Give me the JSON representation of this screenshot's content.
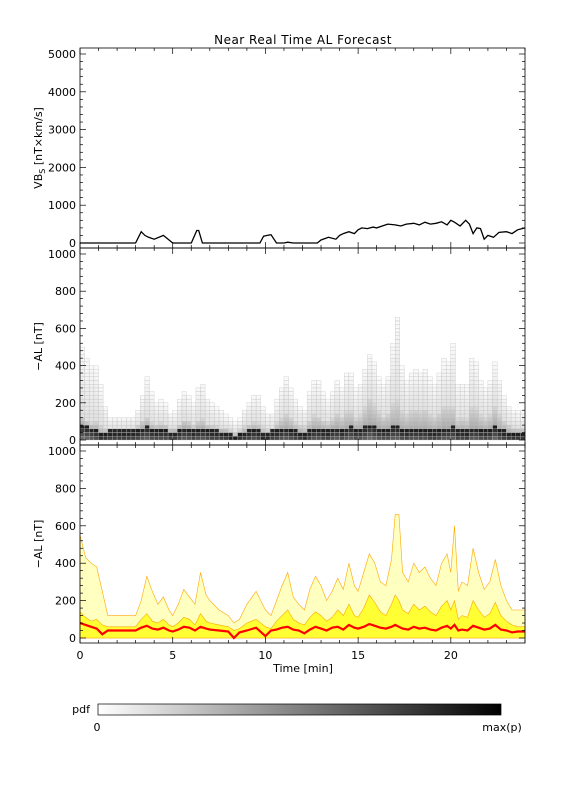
{
  "title": "Near Real Time AL Forecast",
  "colors": {
    "axis": "#000000",
    "vbs_line": "#000000",
    "median_line": "#ff0000",
    "band_outer": "#ffffc0",
    "band_inner": "#ffff33",
    "band_edge": "#ffa500"
  },
  "chart_data": [
    {
      "type": "line",
      "panel": "vbs",
      "ylabel_main": "VB",
      "ylabel_sub": "S",
      "ylabel_unit": "[nT×km/s]",
      "ylim": [
        0,
        5000
      ],
      "yticks": [
        0,
        1000,
        2000,
        3000,
        4000,
        5000
      ],
      "xlim": [
        0,
        24
      ],
      "series": [
        {
          "x": [
            0,
            1,
            2,
            3,
            3.3,
            3.5,
            3.7,
            4,
            4.5,
            5,
            5.5,
            6,
            6.3,
            6.4,
            6.6,
            6.8,
            7,
            8,
            9,
            9.7,
            9.9,
            10.1,
            10.3,
            10.6,
            11,
            11.2,
            11.5,
            12,
            12.8,
            13,
            13.4,
            13.8,
            14,
            14.2,
            14.5,
            14.8,
            15,
            15.2,
            15.5,
            15.8,
            16,
            16.3,
            16.6,
            17,
            17.3,
            17.6,
            18,
            18.3,
            18.6,
            18.9,
            19.2,
            19.5,
            19.8,
            20,
            20.2,
            20.5,
            20.8,
            21,
            21.2,
            21.4,
            21.6,
            21.8,
            22,
            22.3,
            22.6,
            23,
            23.3,
            23.6,
            24
          ],
          "y": [
            0,
            0,
            0,
            0,
            300,
            200,
            150,
            100,
            200,
            0,
            0,
            0,
            330,
            330,
            0,
            0,
            0,
            0,
            0,
            0,
            180,
            200,
            220,
            0,
            0,
            20,
            0,
            0,
            0,
            80,
            150,
            100,
            200,
            250,
            300,
            250,
            350,
            400,
            380,
            420,
            400,
            450,
            500,
            480,
            450,
            500,
            520,
            480,
            550,
            500,
            520,
            560,
            480,
            600,
            550,
            450,
            600,
            500,
            250,
            400,
            380,
            100,
            200,
            150,
            280,
            300,
            250,
            350,
            400
          ]
        }
      ]
    },
    {
      "type": "heatmap",
      "panel": "pdf",
      "ylabel": "−AL [nT]",
      "ylim": [
        0,
        1000
      ],
      "yticks": [
        0,
        200,
        400,
        600,
        800,
        1000
      ],
      "xlim": [
        0,
        24
      ],
      "colorbar": {
        "label": "pdf",
        "min_label": "0",
        "max_label": "max(p)"
      }
    },
    {
      "type": "area",
      "panel": "forecast",
      "ylabel": "−AL [nT]",
      "xlabel": "Time [min]",
      "ylim": [
        0,
        1000
      ],
      "yticks": [
        0,
        200,
        400,
        600,
        800,
        1000
      ],
      "xlim": [
        0,
        24
      ],
      "xticks": [
        0,
        5,
        10,
        15,
        20
      ],
      "x": [
        0,
        0.3,
        0.6,
        0.9,
        1.2,
        1.5,
        2,
        3,
        3.3,
        3.6,
        3.9,
        4.2,
        4.5,
        4.8,
        5,
        5.3,
        5.6,
        5.9,
        6.2,
        6.5,
        6.8,
        7,
        7.5,
        8,
        8.3,
        8.6,
        9,
        9.5,
        10,
        10.3,
        10.6,
        10.9,
        11.2,
        11.5,
        11.8,
        12.1,
        12.4,
        12.7,
        13,
        13.3,
        13.6,
        13.9,
        14.2,
        14.5,
        14.8,
        15,
        15.3,
        15.6,
        15.9,
        16.2,
        16.5,
        16.8,
        17,
        17.2,
        17.4,
        17.7,
        18,
        18.3,
        18.6,
        18.9,
        19.2,
        19.5,
        19.8,
        20,
        20.2,
        20.4,
        20.6,
        20.9,
        21.2,
        21.5,
        21.8,
        22.1,
        22.4,
        22.7,
        23,
        23.3,
        23.6,
        24
      ],
      "upper": [
        550,
        430,
        400,
        380,
        250,
        120,
        120,
        120,
        200,
        330,
        250,
        180,
        220,
        150,
        120,
        180,
        260,
        220,
        180,
        350,
        230,
        200,
        150,
        120,
        80,
        100,
        180,
        250,
        150,
        120,
        200,
        280,
        350,
        220,
        180,
        150,
        260,
        330,
        280,
        200,
        250,
        320,
        260,
        400,
        280,
        250,
        350,
        450,
        400,
        300,
        280,
        420,
        660,
        660,
        350,
        300,
        400,
        350,
        380,
        320,
        280,
        400,
        450,
        350,
        600,
        250,
        300,
        280,
        480,
        350,
        260,
        300,
        420,
        280,
        200,
        150,
        150,
        150
      ],
      "inner": [
        140,
        110,
        90,
        100,
        70,
        60,
        60,
        60,
        100,
        130,
        90,
        80,
        100,
        70,
        60,
        80,
        110,
        100,
        70,
        130,
        90,
        80,
        70,
        60,
        40,
        50,
        80,
        100,
        60,
        50,
        90,
        120,
        150,
        100,
        80,
        70,
        110,
        140,
        120,
        90,
        110,
        150,
        120,
        180,
        120,
        110,
        160,
        230,
        190,
        140,
        120,
        180,
        230,
        200,
        150,
        130,
        180,
        150,
        170,
        140,
        120,
        170,
        200,
        150,
        200,
        100,
        120,
        110,
        200,
        150,
        110,
        130,
        190,
        120,
        90,
        70,
        60,
        60
      ],
      "median": [
        80,
        70,
        60,
        50,
        20,
        40,
        40,
        40,
        55,
        65,
        50,
        45,
        55,
        40,
        35,
        45,
        60,
        55,
        40,
        60,
        50,
        45,
        40,
        35,
        0,
        30,
        40,
        55,
        10,
        40,
        45,
        55,
        60,
        45,
        40,
        25,
        45,
        60,
        50,
        40,
        55,
        60,
        45,
        70,
        55,
        50,
        60,
        75,
        65,
        55,
        50,
        60,
        70,
        60,
        50,
        45,
        60,
        50,
        55,
        45,
        40,
        55,
        65,
        50,
        70,
        40,
        45,
        40,
        65,
        55,
        45,
        50,
        70,
        45,
        40,
        30,
        35,
        35
      ]
    }
  ]
}
